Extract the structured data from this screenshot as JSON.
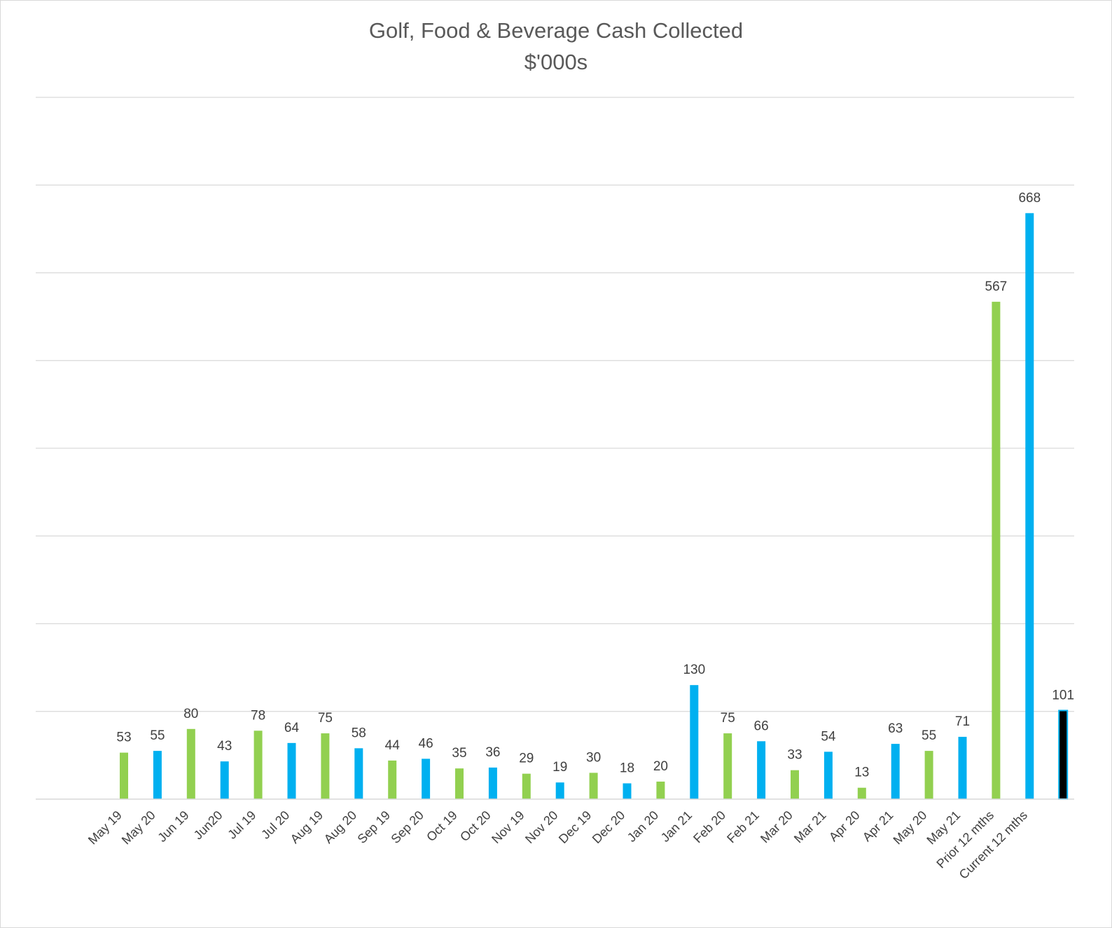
{
  "chart_data": {
    "type": "bar",
    "title": "Golf, Food & Beverage Cash Collected",
    "subtitle": "$'000s",
    "categories": [
      "May 19",
      "May 20",
      "Jun 19",
      "Jun20",
      "Jul 19",
      "Jul 20",
      "Aug 19",
      "Aug 20",
      "Sep 19",
      "Sep 20",
      "Oct 19",
      "Oct 20",
      "Nov 19",
      "Nov 20",
      "Dec 19",
      "Dec 20",
      "Jan 20",
      "Jan 21",
      "Feb 20",
      "Feb 21",
      "Mar 20",
      "Mar 21",
      "Apr 20",
      "Apr 21",
      "May 20",
      "May 21",
      "Prior 12 mths",
      "Current 12 mths",
      ""
    ],
    "values": [
      53,
      55,
      80,
      43,
      78,
      64,
      75,
      58,
      44,
      46,
      35,
      36,
      29,
      19,
      30,
      18,
      20,
      130,
      75,
      66,
      33,
      54,
      13,
      63,
      55,
      71,
      567,
      668,
      101
    ],
    "bar_colors": [
      "green",
      "blue",
      "green",
      "blue",
      "green",
      "blue",
      "green",
      "blue",
      "green",
      "blue",
      "green",
      "blue",
      "green",
      "blue",
      "green",
      "blue",
      "green",
      "blue",
      "green",
      "blue",
      "green",
      "blue",
      "green",
      "blue",
      "green",
      "blue",
      "green",
      "blue",
      "black"
    ],
    "ylim": [
      0,
      800
    ],
    "ytick_step": 100,
    "y_tick_labels_shown": false,
    "grid": true,
    "legend": "none",
    "colors": {
      "green": "#92d050",
      "blue": "#00b0f0",
      "black": "#000000",
      "grid": "#d9d9d9",
      "label_text": "#404040",
      "title_text": "#595959"
    }
  }
}
